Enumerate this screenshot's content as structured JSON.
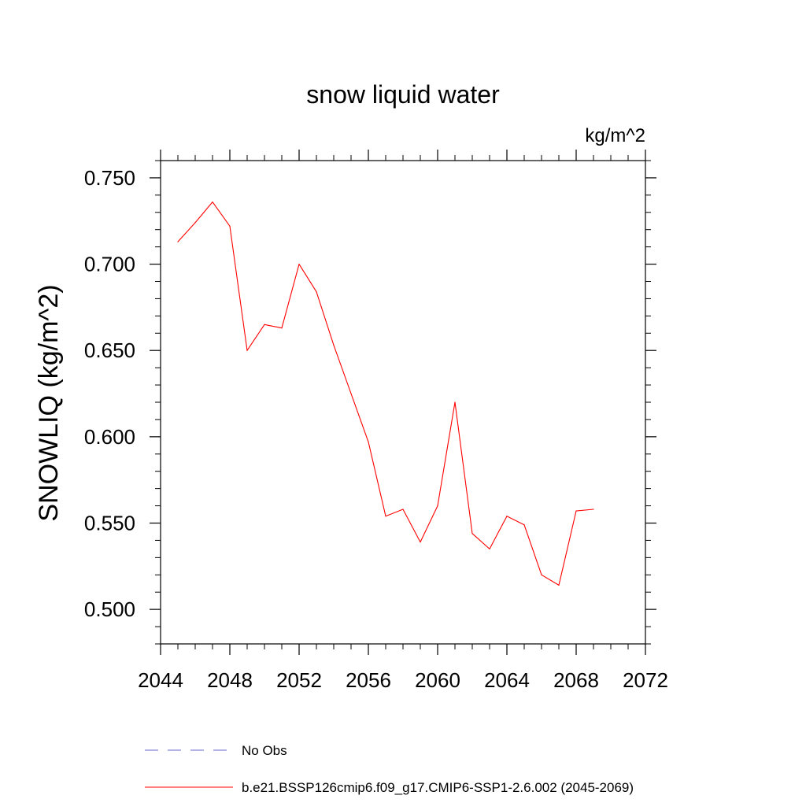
{
  "chart_data": {
    "type": "line",
    "title": "snow liquid water",
    "units_label": "kg/m^2",
    "xlabel": "",
    "ylabel": "SNOWLIQ  (kg/m^2)",
    "xlim": [
      2044,
      2072
    ],
    "ylim": [
      0.48,
      0.76
    ],
    "x_ticks": [
      2044,
      2048,
      2052,
      2056,
      2060,
      2064,
      2068,
      2072
    ],
    "x_tick_labels": [
      "2044",
      "2048",
      "2052",
      "2056",
      "2060",
      "2064",
      "2068",
      "2072"
    ],
    "y_ticks": [
      0.5,
      0.55,
      0.6,
      0.65,
      0.7,
      0.75
    ],
    "y_tick_labels": [
      "0.500",
      "0.550",
      "0.600",
      "0.650",
      "0.700",
      "0.750"
    ],
    "grid": false,
    "series": [
      {
        "name": "b.e21.BSSP126cmip6.f09_g17.CMIP6-SSP1-2.6.002 (2045-2069)",
        "color": "#ff0000",
        "style": "solid",
        "x": [
          2045,
          2046,
          2047,
          2048,
          2049,
          2050,
          2051,
          2052,
          2053,
          2054,
          2055,
          2056,
          2057,
          2058,
          2059,
          2060,
          2061,
          2062,
          2063,
          2064,
          2065,
          2066,
          2067,
          2068,
          2069
        ],
        "values": [
          0.713,
          0.724,
          0.736,
          0.722,
          0.65,
          0.665,
          0.663,
          0.7,
          0.684,
          0.653,
          0.625,
          0.597,
          0.554,
          0.558,
          0.539,
          0.56,
          0.62,
          0.544,
          0.535,
          0.554,
          0.549,
          0.52,
          0.514,
          0.557,
          0.558
        ]
      }
    ],
    "legend": {
      "placement": "bottom",
      "items": [
        {
          "label": "No Obs",
          "color": "#6666cc",
          "style": "dashed"
        },
        {
          "label": "b.e21.BSSP126cmip6.f09_g17.CMIP6-SSP1-2.6.002 (2045-2069)",
          "color": "#ff0000",
          "style": "solid"
        }
      ]
    }
  }
}
